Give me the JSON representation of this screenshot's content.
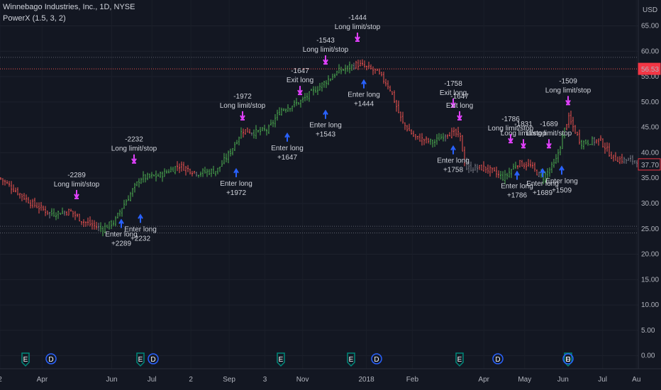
{
  "header": {
    "title": "Winnebago Industries, Inc., 1D, NYSE",
    "study": "PowerX (1.5, 3, 2)"
  },
  "axis": {
    "currency": "USD",
    "price_ticks": [
      "65.00",
      "60.00",
      "55.00",
      "50.00",
      "45.00",
      "40.00",
      "35.00",
      "30.00",
      "25.00",
      "20.00",
      "15.00",
      "10.00",
      "5.00",
      "0.00"
    ],
    "time_ticks": [
      "2",
      "Apr",
      "Jun",
      "Jul",
      "2",
      "Sep",
      "3",
      "Nov",
      "2018",
      "Feb",
      "Apr",
      "May",
      "Jun",
      "Jul",
      "Au"
    ]
  },
  "price_labels": {
    "upper": "56.53",
    "last": "37.70"
  },
  "colors": {
    "background": "#131722",
    "up": "#26a69a",
    "neutral": "#787b86",
    "green_bar": "#4caf50",
    "red_bar": "#ef5350",
    "entry_arrow": "#2962ff",
    "exit_arrow": "#e040fb",
    "level_line": "#ef5350",
    "earnings_badge": "#00897b",
    "dividend_badge": "#2962ff"
  },
  "annotations": {
    "enter_long": "Enter long",
    "long_limit_stop": "Long limit/stop",
    "exit_long": "Exit long",
    "enter_trades": [
      "+2289",
      "+2232",
      "+1972",
      "+1647",
      "+1543",
      "+1444",
      "+1758",
      "+1786",
      "+1689",
      "+1509"
    ],
    "exit_trades": [
      "-2289",
      "-2232",
      "-1972",
      "-1647",
      "-1543",
      "-1444",
      "-1758",
      "-1647",
      "-1786",
      "-1831",
      "-1689",
      "-1509"
    ]
  },
  "events": {
    "earnings_label": "E",
    "dividend_label": "D"
  },
  "chart_data": {
    "type": "candlestick",
    "ylim": [
      -2,
      68
    ],
    "price_levels": [
      58.8,
      56.53,
      25.5,
      24.2
    ],
    "last_price": 37.7,
    "key_prices": [
      {
        "x": 0.0,
        "y": 35.0
      },
      {
        "x": 0.02,
        "y": 33.0
      },
      {
        "x": 0.05,
        "y": 30.0
      },
      {
        "x": 0.08,
        "y": 28.0
      },
      {
        "x": 0.11,
        "y": 28.5
      },
      {
        "x": 0.13,
        "y": 26.5
      },
      {
        "x": 0.16,
        "y": 25.0
      },
      {
        "x": 0.18,
        "y": 26.5
      },
      {
        "x": 0.19,
        "y": 29.0
      },
      {
        "x": 0.22,
        "y": 35.0
      },
      {
        "x": 0.25,
        "y": 35.5
      },
      {
        "x": 0.28,
        "y": 37.5
      },
      {
        "x": 0.31,
        "y": 36.0
      },
      {
        "x": 0.34,
        "y": 36.5
      },
      {
        "x": 0.36,
        "y": 40.0
      },
      {
        "x": 0.38,
        "y": 44.5
      },
      {
        "x": 0.4,
        "y": 44.0
      },
      {
        "x": 0.42,
        "y": 44.5
      },
      {
        "x": 0.44,
        "y": 48.5
      },
      {
        "x": 0.47,
        "y": 50.0
      },
      {
        "x": 0.5,
        "y": 53.0
      },
      {
        "x": 0.53,
        "y": 56.0
      },
      {
        "x": 0.56,
        "y": 57.5
      },
      {
        "x": 0.59,
        "y": 56.0
      },
      {
        "x": 0.61,
        "y": 53.0
      },
      {
        "x": 0.63,
        "y": 46.0
      },
      {
        "x": 0.65,
        "y": 43.0
      },
      {
        "x": 0.68,
        "y": 42.0
      },
      {
        "x": 0.7,
        "y": 44.0
      },
      {
        "x": 0.72,
        "y": 43.5
      },
      {
        "x": 0.73,
        "y": 37.0
      },
      {
        "x": 0.76,
        "y": 37.0
      },
      {
        "x": 0.79,
        "y": 35.0
      },
      {
        "x": 0.81,
        "y": 38.0
      },
      {
        "x": 0.83,
        "y": 37.5
      },
      {
        "x": 0.85,
        "y": 35.0
      },
      {
        "x": 0.87,
        "y": 38.0
      },
      {
        "x": 0.89,
        "y": 47.0
      },
      {
        "x": 0.91,
        "y": 42.0
      },
      {
        "x": 0.94,
        "y": 42.5
      },
      {
        "x": 0.96,
        "y": 39.0
      },
      {
        "x": 0.98,
        "y": 38.5
      }
    ],
    "entries": [
      {
        "x": 0.19,
        "y": 27.0,
        "trade": "+2289"
      },
      {
        "x": 0.22,
        "y": 28.0,
        "trade": "+2232"
      },
      {
        "x": 0.37,
        "y": 37.0,
        "trade": "+1972"
      },
      {
        "x": 0.45,
        "y": 44.0,
        "trade": "+1647"
      },
      {
        "x": 0.51,
        "y": 48.5,
        "trade": "+1543"
      },
      {
        "x": 0.57,
        "y": 54.5,
        "trade": "+1444"
      },
      {
        "x": 0.71,
        "y": 41.5,
        "trade": "+1758"
      },
      {
        "x": 0.81,
        "y": 36.5,
        "trade": "+1786"
      },
      {
        "x": 0.85,
        "y": 37.0,
        "trade": "+1689"
      },
      {
        "x": 0.88,
        "y": 37.5,
        "trade": "+1509"
      }
    ],
    "exits": [
      {
        "x": 0.12,
        "y": 31.0,
        "trade": "-2289"
      },
      {
        "x": 0.21,
        "y": 38.0,
        "trade": "-2232"
      },
      {
        "x": 0.38,
        "y": 46.5,
        "trade": "-1972"
      },
      {
        "x": 0.47,
        "y": 51.5,
        "trade": "-1647"
      },
      {
        "x": 0.51,
        "y": 57.5,
        "trade": "-1543"
      },
      {
        "x": 0.56,
        "y": 62.0,
        "trade": "-1444"
      },
      {
        "x": 0.71,
        "y": 49.0,
        "trade": "-1758"
      },
      {
        "x": 0.72,
        "y": 46.5,
        "trade": "-1647"
      },
      {
        "x": 0.8,
        "y": 42.0,
        "trade": "-1786"
      },
      {
        "x": 0.82,
        "y": 41.0,
        "trade": "-1831"
      },
      {
        "x": 0.86,
        "y": 41.0,
        "trade": "-1689"
      },
      {
        "x": 0.89,
        "y": 49.5,
        "trade": "-1509"
      }
    ],
    "earnings_events": [
      0.04,
      0.22,
      0.44,
      0.55,
      0.72,
      0.89
    ],
    "dividend_events": [
      0.08,
      0.24,
      0.59,
      0.78,
      0.89
    ]
  }
}
